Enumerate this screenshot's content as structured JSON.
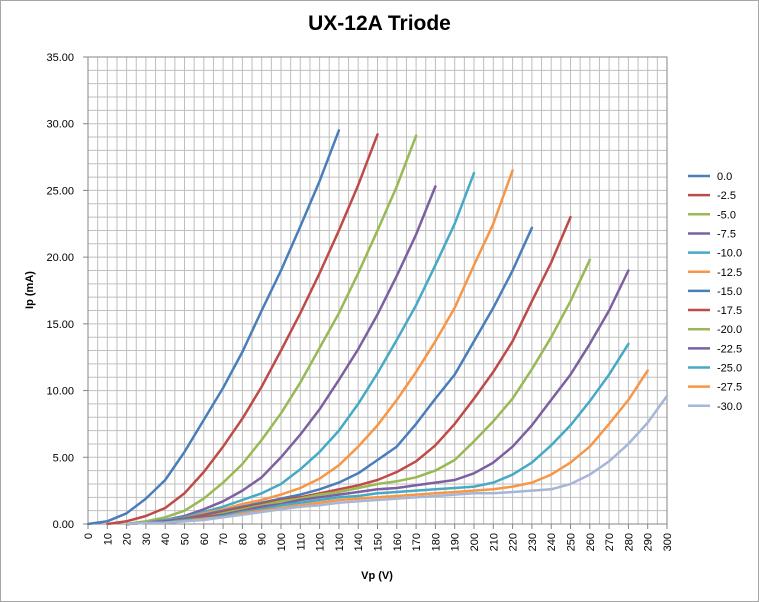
{
  "chart_data": {
    "type": "line",
    "title": "UX-12A Triode",
    "xlabel": "Vp (V)",
    "ylabel": "Ip (mA)",
    "xlim": [
      0,
      300
    ],
    "ylim": [
      0,
      35
    ],
    "x_ticks": [
      "0",
      "10",
      "20",
      "30",
      "40",
      "50",
      "60",
      "70",
      "80",
      "90",
      "100",
      "110",
      "120",
      "130",
      "140",
      "150",
      "160",
      "170",
      "180",
      "190",
      "200",
      "210",
      "220",
      "230",
      "240",
      "250",
      "260",
      "270",
      "280",
      "290",
      "300"
    ],
    "y_ticks": [
      "0.00",
      "5.00",
      "10.00",
      "15.00",
      "20.00",
      "25.00",
      "30.00",
      "35.00"
    ],
    "grid": true,
    "legend_position": "right",
    "series": [
      {
        "name": "0.0",
        "color": "#4a7ebb",
        "x": [
          0,
          10,
          20,
          30,
          40,
          50,
          60,
          70,
          80,
          90,
          100,
          110,
          120,
          130
        ],
        "y": [
          0,
          0.2,
          0.8,
          1.9,
          3.3,
          5.4,
          7.8,
          10.2,
          12.9,
          16.0,
          19.0,
          22.3,
          25.7,
          29.5
        ]
      },
      {
        "name": "-2.5",
        "color": "#be4b48",
        "x": [
          10,
          20,
          30,
          40,
          50,
          60,
          70,
          80,
          90,
          100,
          110,
          120,
          130,
          140,
          150
        ],
        "y": [
          0,
          0.2,
          0.6,
          1.2,
          2.3,
          3.9,
          5.8,
          7.9,
          10.3,
          13.0,
          15.8,
          18.8,
          22.0,
          25.4,
          29.2
        ]
      },
      {
        "name": "-5.0",
        "color": "#98b954",
        "x": [
          20,
          30,
          40,
          50,
          60,
          70,
          80,
          90,
          100,
          110,
          120,
          130,
          140,
          150,
          160,
          170
        ],
        "y": [
          0,
          0.2,
          0.5,
          1.0,
          1.9,
          3.1,
          4.5,
          6.3,
          8.3,
          10.6,
          13.2,
          15.8,
          18.8,
          22.0,
          25.3,
          29.1
        ]
      },
      {
        "name": "-7.5",
        "color": "#7d60a0",
        "x": [
          20,
          30,
          40,
          50,
          60,
          70,
          80,
          90,
          100,
          110,
          120,
          130,
          140,
          150,
          160,
          170,
          180
        ],
        "y": [
          0,
          0.1,
          0.3,
          0.6,
          1.1,
          1.7,
          2.5,
          3.5,
          5.0,
          6.7,
          8.6,
          10.8,
          13.1,
          15.7,
          18.6,
          21.7,
          25.3
        ]
      },
      {
        "name": "-10.0",
        "color": "#46aac5",
        "x": [
          20,
          30,
          40,
          50,
          60,
          70,
          80,
          90,
          100,
          110,
          120,
          130,
          140,
          150,
          160,
          170,
          180,
          190,
          200
        ],
        "y": [
          0,
          0.1,
          0.3,
          0.5,
          0.9,
          1.3,
          1.8,
          2.3,
          3.0,
          4.1,
          5.4,
          7.0,
          9.0,
          11.3,
          13.8,
          16.4,
          19.4,
          22.5,
          26.3
        ]
      },
      {
        "name": "-12.5",
        "color": "#f79646",
        "x": [
          20,
          30,
          40,
          50,
          60,
          70,
          80,
          90,
          100,
          110,
          120,
          130,
          140,
          150,
          160,
          170,
          180,
          190,
          200,
          210,
          220
        ],
        "y": [
          0,
          0.1,
          0.2,
          0.4,
          0.8,
          1.1,
          1.5,
          1.8,
          2.2,
          2.7,
          3.4,
          4.4,
          5.8,
          7.4,
          9.3,
          11.4,
          13.7,
          16.2,
          19.4,
          22.5,
          26.5
        ]
      },
      {
        "name": "-15.0",
        "color": "#4a7ebb",
        "x": [
          20,
          30,
          40,
          50,
          60,
          70,
          80,
          90,
          100,
          110,
          120,
          130,
          140,
          150,
          160,
          170,
          180,
          190,
          200,
          210,
          220,
          230
        ],
        "y": [
          0,
          0.1,
          0.2,
          0.4,
          0.7,
          1.0,
          1.3,
          1.6,
          1.9,
          2.2,
          2.6,
          3.1,
          3.8,
          4.8,
          5.8,
          7.5,
          9.4,
          11.2,
          13.7,
          16.2,
          19.0,
          22.2
        ]
      },
      {
        "name": "-17.5",
        "color": "#be4b48",
        "x": [
          20,
          30,
          40,
          50,
          60,
          70,
          80,
          90,
          100,
          110,
          120,
          130,
          140,
          150,
          160,
          170,
          180,
          190,
          200,
          210,
          220,
          230,
          240,
          250
        ],
        "y": [
          0,
          0.1,
          0.2,
          0.4,
          0.6,
          0.9,
          1.2,
          1.5,
          1.8,
          2.0,
          2.3,
          2.6,
          2.9,
          3.3,
          3.9,
          4.7,
          5.9,
          7.5,
          9.4,
          11.4,
          13.7,
          16.7,
          19.6,
          23.0
        ]
      },
      {
        "name": "-20.0",
        "color": "#98b954",
        "x": [
          20,
          30,
          40,
          50,
          60,
          70,
          80,
          90,
          100,
          110,
          120,
          130,
          140,
          150,
          160,
          170,
          180,
          190,
          200,
          210,
          220,
          230,
          240,
          250,
          260
        ],
        "y": [
          0,
          0.1,
          0.2,
          0.3,
          0.5,
          0.8,
          1.1,
          1.4,
          1.7,
          1.9,
          2.2,
          2.4,
          2.7,
          3.0,
          3.2,
          3.5,
          4.0,
          4.8,
          6.2,
          7.7,
          9.4,
          11.6,
          14.0,
          16.7,
          19.8
        ]
      },
      {
        "name": "-22.5",
        "color": "#7d60a0",
        "x": [
          20,
          30,
          40,
          50,
          60,
          70,
          80,
          90,
          100,
          110,
          120,
          130,
          140,
          150,
          160,
          170,
          180,
          190,
          200,
          210,
          220,
          230,
          240,
          250,
          260,
          270,
          280
        ],
        "y": [
          0,
          0.1,
          0.2,
          0.3,
          0.5,
          0.7,
          1.0,
          1.3,
          1.5,
          1.8,
          2.0,
          2.2,
          2.4,
          2.6,
          2.7,
          2.9,
          3.1,
          3.3,
          3.8,
          4.6,
          5.8,
          7.4,
          9.3,
          11.2,
          13.5,
          16.0,
          19.0
        ]
      },
      {
        "name": "-25.0",
        "color": "#46aac5",
        "x": [
          20,
          30,
          40,
          50,
          60,
          70,
          80,
          90,
          100,
          110,
          120,
          130,
          140,
          150,
          160,
          170,
          180,
          190,
          200,
          210,
          220,
          230,
          240,
          250,
          260,
          270,
          280
        ],
        "y": [
          0,
          0.1,
          0.1,
          0.3,
          0.4,
          0.6,
          0.9,
          1.1,
          1.4,
          1.6,
          1.8,
          2.0,
          2.1,
          2.3,
          2.4,
          2.5,
          2.6,
          2.7,
          2.8,
          3.1,
          3.7,
          4.6,
          5.9,
          7.4,
          9.2,
          11.2,
          13.5
        ]
      },
      {
        "name": "-27.5",
        "color": "#f79646",
        "x": [
          20,
          30,
          40,
          50,
          60,
          70,
          80,
          90,
          100,
          110,
          120,
          130,
          140,
          150,
          160,
          170,
          180,
          190,
          200,
          210,
          220,
          230,
          240,
          250,
          260,
          270,
          280,
          290
        ],
        "y": [
          0,
          0.1,
          0.1,
          0.2,
          0.4,
          0.5,
          0.8,
          1.0,
          1.2,
          1.4,
          1.6,
          1.8,
          1.9,
          2.0,
          2.1,
          2.2,
          2.3,
          2.4,
          2.5,
          2.6,
          2.8,
          3.1,
          3.7,
          4.6,
          5.8,
          7.5,
          9.3,
          11.5
        ]
      },
      {
        "name": "-30.0",
        "color": "#a5b6d7",
        "x": [
          20,
          30,
          40,
          50,
          60,
          70,
          80,
          90,
          100,
          110,
          120,
          130,
          140,
          150,
          160,
          170,
          180,
          190,
          200,
          210,
          220,
          230,
          240,
          250,
          260,
          270,
          280,
          290,
          300
        ],
        "y": [
          0,
          0.1,
          0.1,
          0.2,
          0.3,
          0.5,
          0.7,
          0.9,
          1.1,
          1.3,
          1.4,
          1.6,
          1.7,
          1.8,
          1.9,
          2.0,
          2.1,
          2.2,
          2.3,
          2.3,
          2.4,
          2.5,
          2.6,
          3.0,
          3.7,
          4.7,
          6.0,
          7.6,
          9.6
        ]
      }
    ]
  }
}
